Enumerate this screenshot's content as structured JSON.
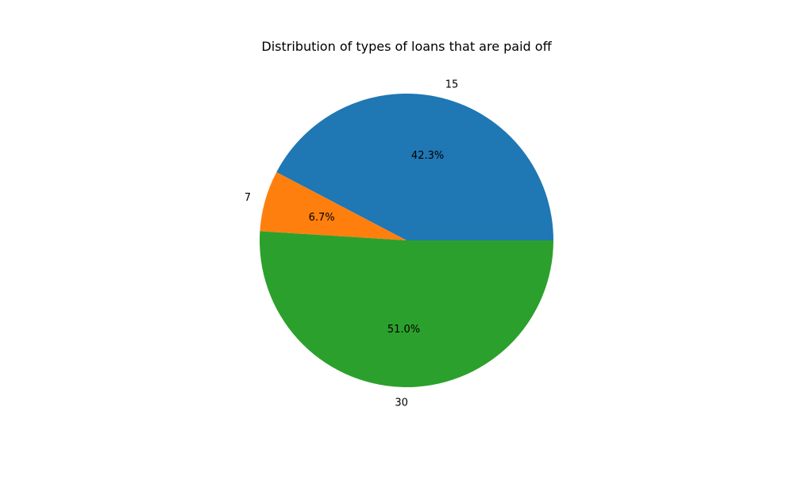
{
  "chart_data": {
    "type": "pie",
    "title": "Distribution of types of loans that are paid off",
    "labels": [
      "15",
      "7",
      "30"
    ],
    "values": [
      42.3,
      6.7,
      51.0
    ],
    "pct_labels": [
      "42.3%",
      "6.7%",
      "51.0%"
    ],
    "colors": [
      "#1f77b4",
      "#ff7f0e",
      "#2ca02c"
    ],
    "start_angle_deg": 0,
    "direction": "counterclockwise",
    "legend": "none"
  }
}
